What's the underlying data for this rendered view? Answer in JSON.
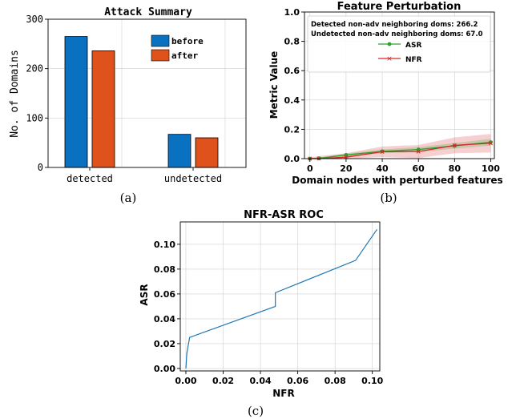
{
  "chart_data": [
    {
      "type": "bar",
      "title": "Attack Summary",
      "ylabel": "No. of Domains",
      "xlabel": "",
      "categories": [
        "detected",
        "undetected"
      ],
      "series": [
        {
          "name": "before",
          "values": [
            265,
            67
          ],
          "color": "#0a70c0"
        },
        {
          "name": "after",
          "values": [
            236,
            60
          ],
          "color": "#e0521c"
        }
      ],
      "ylim": [
        0,
        300
      ],
      "yticks": [
        0,
        100,
        200,
        300
      ],
      "grid": true,
      "legend": "top-right",
      "caption": "(a)"
    },
    {
      "type": "line",
      "title": "Feature Perturbation",
      "xlabel": "Domain nodes with perturbed features",
      "ylabel": "Metric Value",
      "annotations": [
        "Detected non-adv neighboring doms: 266.2",
        "Undetected non-adv neighboring doms: 67.0"
      ],
      "x": [
        0,
        5,
        20,
        40,
        60,
        80,
        100
      ],
      "series": [
        {
          "name": "ASR",
          "values": [
            0.0,
            0.002,
            0.025,
            0.05,
            0.062,
            0.087,
            0.112
          ],
          "color": "#2ca02c",
          "marker": "circle",
          "band": 0.02
        },
        {
          "name": "NFR",
          "values": [
            0.0,
            0.0,
            0.01,
            0.047,
            0.048,
            0.091,
            0.105
          ],
          "color": "#d62728",
          "marker": "x",
          "band": 0.055
        }
      ],
      "xlim": [
        -3,
        102
      ],
      "ylim": [
        0.0,
        1.0
      ],
      "xticks": [
        0,
        20,
        40,
        60,
        80,
        100
      ],
      "yticks": [
        0.0,
        0.2,
        0.4,
        0.6,
        0.8,
        1.0
      ],
      "grid": true,
      "legend": "top",
      "caption": "(b)"
    },
    {
      "type": "line",
      "title": "NFR-ASR ROC",
      "xlabel": "NFR",
      "ylabel": "ASR",
      "series": [
        {
          "x": [
            0.0,
            0.0005,
            0.002,
            0.048,
            0.048,
            0.091,
            0.1025
          ],
          "values": [
            0.0,
            0.012,
            0.025,
            0.05,
            0.061,
            0.087,
            0.112
          ],
          "color": "#1f77b4"
        }
      ],
      "xlim": [
        -0.003,
        0.104
      ],
      "ylim": [
        -0.002,
        0.118
      ],
      "xticks": [
        0.0,
        0.02,
        0.04,
        0.06,
        0.08,
        0.1
      ],
      "xtick_labels": [
        "0.00",
        "0.02",
        "0.04",
        "0.06",
        "0.08",
        "0.10"
      ],
      "yticks": [
        0.0,
        0.02,
        0.04,
        0.06,
        0.08,
        0.1
      ],
      "ytick_labels": [
        "0.00",
        "0.02",
        "0.04",
        "0.06",
        "0.08",
        "0.10"
      ],
      "grid": true,
      "caption": "(c)"
    }
  ]
}
